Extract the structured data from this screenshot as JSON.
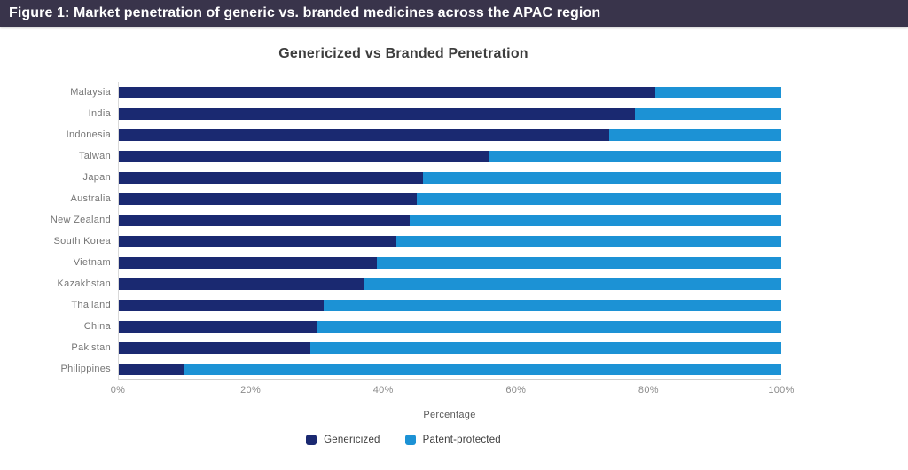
{
  "figure_caption": {
    "text": "Figure 1: Market penetration of generic vs. branded medicines across the APAC region"
  },
  "chart": {
    "title": "Genericized vs Branded Penetration",
    "x_axis_label": "Percentage",
    "tick_labels": [
      "0%",
      "20%",
      "40%",
      "60%",
      "80%",
      "100%"
    ]
  },
  "colors": {
    "caption_bar_bg": "#39344B",
    "genericized": "#1A2971",
    "patent_protected": "#1C92D5",
    "axis_line": "#D9D9D9",
    "category_text": "#757575"
  },
  "chart_data": {
    "type": "bar",
    "orientation": "horizontal",
    "stacked": true,
    "title": "Genericized vs Branded Penetration",
    "xlabel": "Percentage",
    "xlim": [
      0,
      100
    ],
    "xticks": [
      0,
      20,
      40,
      60,
      80,
      100
    ],
    "grid": false,
    "legend_position": "bottom",
    "categories": [
      "Malaysia",
      "India",
      "Indonesia",
      "Taiwan",
      "Japan",
      "Australia",
      "New Zealand",
      "South Korea",
      "Vietnam",
      "Kazakhstan",
      "Thailand",
      "China",
      "Pakistan",
      "Philippines"
    ],
    "series": [
      {
        "name": "Genericized",
        "color": "#1A2971",
        "values": [
          81,
          78,
          74,
          56,
          46,
          45,
          44,
          42,
          39,
          37,
          31,
          30,
          29,
          10
        ]
      },
      {
        "name": "Patent-protected",
        "color": "#1C92D5",
        "values": [
          19,
          22,
          26,
          44,
          54,
          55,
          56,
          58,
          61,
          63,
          69,
          70,
          71,
          90
        ]
      }
    ]
  }
}
